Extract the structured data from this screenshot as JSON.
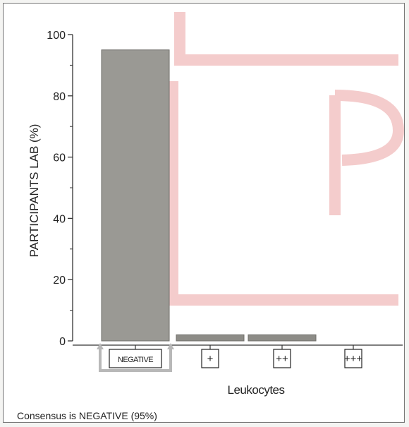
{
  "chart_data": {
    "type": "bar",
    "title": "",
    "xlabel": "Leukocytes",
    "ylabel": "PARTICIPANTS LAB (%)",
    "categories": [
      "NEGATIVE",
      "+",
      "++",
      "+++"
    ],
    "values": [
      95,
      2,
      2,
      0
    ],
    "ylim": [
      0,
      100
    ],
    "yticks": [
      0,
      20,
      40,
      60,
      80,
      100
    ],
    "grid": false,
    "legend": "none",
    "highlighted_category": "NEGATIVE"
  },
  "footer": {
    "consensus_text": "Consensus is NEGATIVE (95%)"
  },
  "colors": {
    "bar": "#8d8c87",
    "bar_main": "#9a9994",
    "axis": "#333333",
    "highlight_bracket": "#b8b8b8",
    "watermark": "#f3c8c8"
  }
}
